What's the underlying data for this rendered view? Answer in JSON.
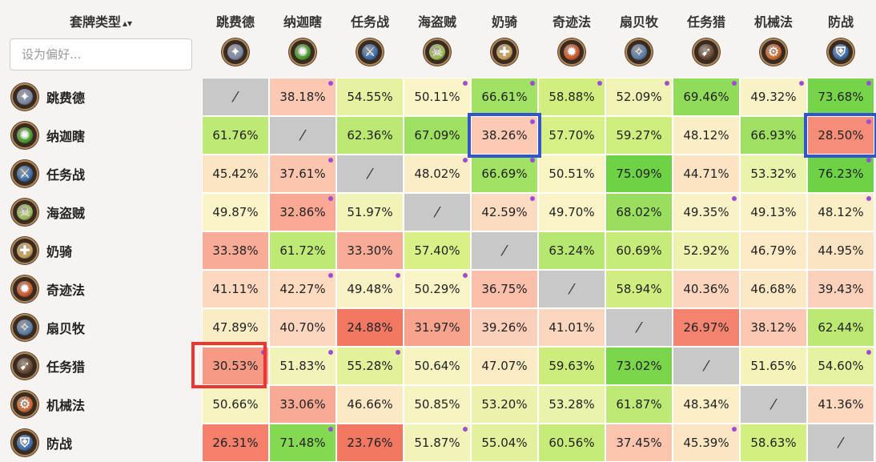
{
  "sidebar": {
    "sort_label": "套牌类型",
    "sort_arrows": "▴▾",
    "search_placeholder": "设为偏好..."
  },
  "decks": [
    {
      "name": "跳费德",
      "icon": "druid-icon",
      "color": "#7d8aa8",
      "glyph": "✦"
    },
    {
      "name": "纳迦瞎",
      "icon": "naga-icon",
      "color": "#4aa02c",
      "glyph": "✺"
    },
    {
      "name": "任务战",
      "icon": "warrior-quest-icon",
      "color": "#3b6fb0",
      "glyph": "⚔"
    },
    {
      "name": "海盗贼",
      "icon": "pirate-icon",
      "color": "#9fbf5a",
      "glyph": "☠"
    },
    {
      "name": "奶骑",
      "icon": "paladin-icon",
      "color": "#c9a45a",
      "glyph": "✚"
    },
    {
      "name": "奇迹法",
      "icon": "mage-miracle-icon",
      "color": "#d05a2a",
      "glyph": "✹"
    },
    {
      "name": "扇贝牧",
      "icon": "priest-icon",
      "color": "#5a7fa8",
      "glyph": "✧"
    },
    {
      "name": "任务猎",
      "icon": "hunter-quest-icon",
      "color": "#6a4a30",
      "glyph": "➹"
    },
    {
      "name": "机械法",
      "icon": "mech-mage-icon",
      "color": "#d06a30",
      "glyph": "⚙"
    },
    {
      "name": "防战",
      "icon": "control-warrior-icon",
      "color": "#3b6fb0",
      "glyph": "⛨"
    }
  ],
  "self_symbol": "⁄",
  "matrix": [
    [
      null,
      "38.18%",
      "54.55%",
      "50.11%",
      "66.61%",
      "58.88%",
      "52.09%",
      "69.46%",
      "49.32%",
      "73.68%"
    ],
    [
      "61.76%",
      null,
      "62.36%",
      "67.09%",
      "38.26%",
      "57.70%",
      "59.27%",
      "48.12%",
      "66.93%",
      "28.50%"
    ],
    [
      "45.42%",
      "37.61%",
      null,
      "48.02%",
      "66.69%",
      "50.51%",
      "75.09%",
      "44.71%",
      "53.32%",
      "76.23%"
    ],
    [
      "49.87%",
      "32.86%",
      "51.97%",
      null,
      "42.59%",
      "49.70%",
      "68.02%",
      "49.35%",
      "49.13%",
      "48.12%"
    ],
    [
      "33.38%",
      "61.72%",
      "33.30%",
      "57.40%",
      null,
      "63.24%",
      "60.69%",
      "52.92%",
      "46.79%",
      "44.95%"
    ],
    [
      "41.11%",
      "42.27%",
      "49.48%",
      "50.29%",
      "36.75%",
      null,
      "58.94%",
      "40.36%",
      "46.68%",
      "39.43%"
    ],
    [
      "47.89%",
      "40.70%",
      "24.88%",
      "31.97%",
      "39.26%",
      "41.01%",
      null,
      "26.97%",
      "38.12%",
      "62.44%"
    ],
    [
      "30.53%",
      "51.83%",
      "55.28%",
      "50.64%",
      "47.07%",
      "59.63%",
      "73.02%",
      null,
      "51.65%",
      "54.60%"
    ],
    [
      "50.66%",
      "33.06%",
      "46.66%",
      "50.85%",
      "53.20%",
      "53.28%",
      "61.87%",
      "48.34%",
      null,
      "41.36%"
    ],
    [
      "26.31%",
      "71.48%",
      "23.76%",
      "51.87%",
      "55.04%",
      "60.56%",
      "37.45%",
      "45.39%",
      "58.63%",
      null
    ]
  ],
  "dots": [
    [
      0,
      1,
      0,
      1,
      1,
      1,
      1,
      1,
      1,
      1
    ],
    [
      0,
      0,
      0,
      0,
      1,
      0,
      0,
      0,
      0,
      1
    ],
    [
      0,
      1,
      0,
      1,
      1,
      0,
      0,
      0,
      0,
      1
    ],
    [
      0,
      1,
      0,
      0,
      1,
      0,
      0,
      1,
      0,
      1
    ],
    [
      0,
      0,
      0,
      0,
      0,
      0,
      0,
      0,
      0,
      0
    ],
    [
      0,
      1,
      1,
      1,
      0,
      0,
      0,
      0,
      0,
      0
    ],
    [
      0,
      0,
      0,
      0,
      0,
      0,
      0,
      0,
      0,
      0
    ],
    [
      1,
      1,
      1,
      0,
      0,
      0,
      0,
      0,
      0,
      1
    ],
    [
      0,
      0,
      0,
      0,
      0,
      0,
      0,
      0,
      0,
      0
    ],
    [
      0,
      1,
      0,
      1,
      0,
      0,
      0,
      1,
      0,
      0
    ]
  ],
  "highlights": {
    "red": [
      [
        7,
        0
      ]
    ],
    "blue": [
      [
        1,
        4
      ],
      [
        1,
        9
      ]
    ]
  },
  "colors": {
    "self": "#c8c8c8",
    "dot": "#9b4dd6",
    "red_box": "#ee3333",
    "blue_box": "#3355cc"
  }
}
